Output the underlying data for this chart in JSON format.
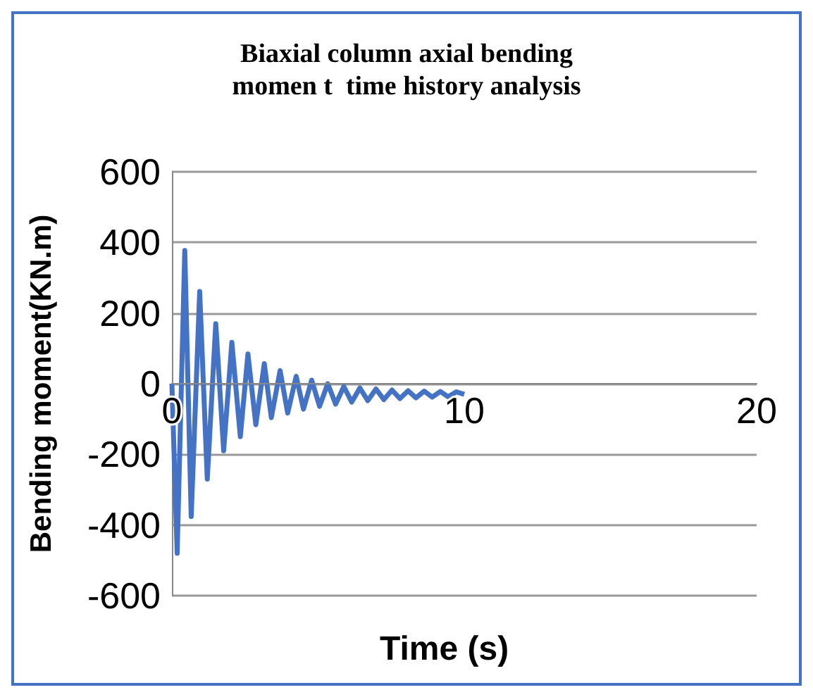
{
  "chart_data": {
    "type": "line",
    "title": "Biaxial column axial bending\nmomen t  time history analysis",
    "xlabel": "Time (s)",
    "ylabel": "Bending moment(KN.m)",
    "x": [
      0,
      0.18,
      0.44,
      0.66,
      0.95,
      1.21,
      1.5,
      1.77,
      2.05,
      2.34,
      2.6,
      2.87,
      3.16,
      3.4,
      3.7,
      3.96,
      4.25,
      4.5,
      4.78,
      5.05,
      5.33,
      5.6,
      5.88,
      6.15,
      6.43,
      6.7,
      6.98,
      7.25,
      7.53,
      7.8,
      8.08,
      8.35,
      8.63,
      8.9,
      9.18,
      9.45,
      9.73,
      10
    ],
    "series": [
      {
        "color": "#4472c4",
        "values": [
          0,
          -480,
          377,
          -376,
          261,
          -270,
          170,
          -190,
          117,
          -150,
          84,
          -116,
          57,
          -96,
          37,
          -83,
          21,
          -72,
          10,
          -64,
          0,
          -58,
          -8,
          -52,
          -12,
          -48,
          -15,
          -45,
          -18,
          -42,
          -20,
          -40,
          -21,
          -38,
          -22,
          -37,
          -23,
          -30
        ]
      }
    ],
    "xlim": [
      0,
      20
    ],
    "xticks": [
      0,
      10,
      20
    ],
    "ylim": [
      -600,
      600
    ],
    "yticks": [
      -600,
      -400,
      -200,
      0,
      200,
      400,
      600
    ],
    "grid": "y",
    "marker": "none",
    "line_style": "solid"
  }
}
